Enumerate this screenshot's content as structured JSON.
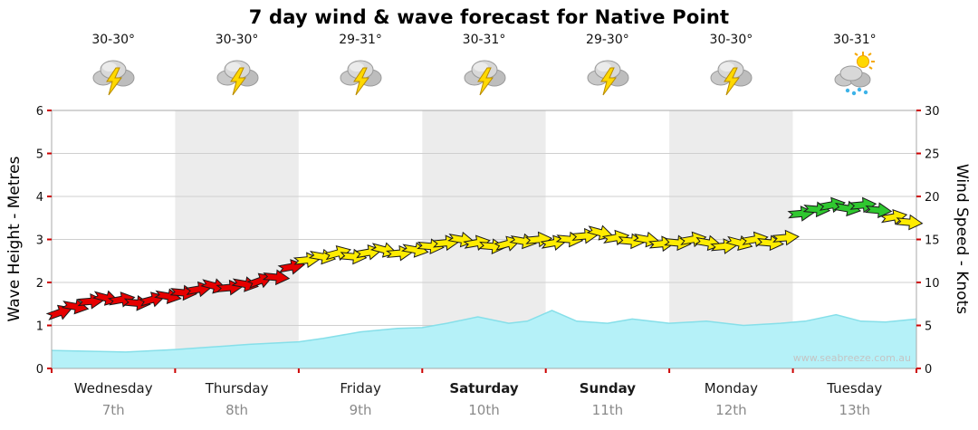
{
  "title": "7 day wind & wave forecast for Native Point",
  "watermark": "www.seabreeze.com.au",
  "days": [
    {
      "name": "Wednesday",
      "date": "7th",
      "temp": "30-30°",
      "icon": "storm",
      "weekend": false
    },
    {
      "name": "Thursday",
      "date": "8th",
      "temp": "30-30°",
      "icon": "storm",
      "weekend": false
    },
    {
      "name": "Friday",
      "date": "9th",
      "temp": "29-31°",
      "icon": "storm",
      "weekend": false
    },
    {
      "name": "Saturday",
      "date": "10th",
      "temp": "30-31°",
      "icon": "storm",
      "weekend": true
    },
    {
      "name": "Sunday",
      "date": "11th",
      "temp": "29-30°",
      "icon": "storm",
      "weekend": true
    },
    {
      "name": "Monday",
      "date": "12th",
      "temp": "30-30°",
      "icon": "storm",
      "weekend": false
    },
    {
      "name": "Tuesday",
      "date": "13th",
      "temp": "30-31°",
      "icon": "sun-shower",
      "weekend": false
    }
  ],
  "chart_data": {
    "type": "area",
    "title": "7 day wind & wave forecast for Native Point",
    "ylabel_left": "Wave Height - Metres",
    "ylabel_right": "Wind Speed - Knots",
    "ylim_left": [
      0,
      6
    ],
    "ylim_right": [
      0,
      30
    ],
    "yticks_left": [
      0,
      1,
      2,
      3,
      4,
      5,
      6
    ],
    "yticks_right": [
      0,
      5,
      10,
      15,
      20,
      25,
      30
    ],
    "xlim_days": [
      0,
      7
    ],
    "grid": true,
    "wave_series": {
      "name": "Wave Height (m)",
      "x": [
        0,
        0.3,
        0.6,
        1.0,
        1.3,
        1.6,
        2.0,
        2.2,
        2.5,
        2.8,
        3.0,
        3.2,
        3.45,
        3.7,
        3.85,
        4.05,
        4.25,
        4.5,
        4.7,
        5.0,
        5.3,
        5.6,
        5.9,
        6.1,
        6.35,
        6.55,
        6.75,
        7.0
      ],
      "values": [
        0.42,
        0.4,
        0.38,
        0.44,
        0.5,
        0.56,
        0.62,
        0.7,
        0.85,
        0.93,
        0.95,
        1.05,
        1.2,
        1.05,
        1.1,
        1.35,
        1.1,
        1.05,
        1.15,
        1.05,
        1.1,
        1.0,
        1.05,
        1.1,
        1.25,
        1.1,
        1.08,
        1.15
      ]
    },
    "wind_series": {
      "name": "Wind Speed (knots)",
      "x": [
        0.0625,
        0.1875,
        0.3125,
        0.4375,
        0.5625,
        0.6875,
        0.8125,
        0.9375,
        1.0625,
        1.1875,
        1.3125,
        1.4375,
        1.5625,
        1.6875,
        1.8125,
        1.9375,
        2.0625,
        2.1875,
        2.3125,
        2.4375,
        2.5625,
        2.6875,
        2.8125,
        2.9375,
        3.0625,
        3.1875,
        3.3125,
        3.4375,
        3.5625,
        3.6875,
        3.8125,
        3.9375,
        4.0625,
        4.1875,
        4.3125,
        4.4375,
        4.5625,
        4.6875,
        4.8125,
        4.9375,
        5.0625,
        5.1875,
        5.3125,
        5.4375,
        5.5625,
        5.6875,
        5.8125,
        5.9375,
        6.0625,
        6.1875,
        6.3125,
        6.4375,
        6.5625,
        6.6875,
        6.8125,
        6.9375
      ],
      "knots": [
        6.5,
        7.2,
        7.8,
        8.2,
        8.0,
        7.6,
        8.0,
        8.4,
        8.8,
        9.2,
        9.6,
        9.4,
        9.8,
        10.2,
        10.6,
        11.8,
        12.6,
        13.0,
        13.4,
        13.0,
        13.5,
        13.8,
        13.4,
        13.8,
        14.2,
        14.6,
        15.0,
        14.6,
        14.2,
        14.5,
        14.8,
        15.0,
        14.6,
        15.0,
        15.4,
        15.8,
        15.2,
        14.8,
        15.0,
        14.5,
        14.6,
        15.0,
        14.6,
        14.2,
        14.6,
        15.0,
        14.6,
        15.2,
        18.0,
        18.5,
        19.0,
        18.6,
        19.0,
        18.4,
        17.6,
        17.0
      ],
      "direction_deg": [
        -20,
        10,
        -5,
        15,
        -10,
        5,
        -15,
        10,
        5,
        -10,
        15,
        -5,
        10,
        -20,
        5,
        -10,
        -5,
        10,
        -15,
        5,
        -10,
        15,
        -5,
        10,
        5,
        -5,
        10,
        -10,
        5,
        -15,
        10,
        -5,
        -10,
        5,
        -5,
        15,
        -10,
        5,
        10,
        -5,
        5,
        -10,
        10,
        -5,
        15,
        -10,
        5,
        -5,
        -5,
        5,
        -10,
        10,
        -5,
        5,
        -10,
        5
      ],
      "color": [
        "red",
        "red",
        "red",
        "red",
        "red",
        "red",
        "red",
        "red",
        "red",
        "red",
        "red",
        "red",
        "red",
        "red",
        "red",
        "red",
        "yellow",
        "yellow",
        "yellow",
        "yellow",
        "yellow",
        "yellow",
        "yellow",
        "yellow",
        "yellow",
        "yellow",
        "yellow",
        "yellow",
        "yellow",
        "yellow",
        "yellow",
        "yellow",
        "yellow",
        "yellow",
        "yellow",
        "yellow",
        "yellow",
        "yellow",
        "yellow",
        "yellow",
        "yellow",
        "yellow",
        "yellow",
        "yellow",
        "yellow",
        "yellow",
        "yellow",
        "yellow",
        "green",
        "green",
        "green",
        "green",
        "green",
        "green",
        "yellow",
        "yellow"
      ]
    },
    "colors": {
      "wave_fill": "#b5f1f8",
      "wave_edge": "#86dfe9",
      "red": "#e60000",
      "yellow": "#ffec00",
      "green": "#2fc82f",
      "band_alt": "#ececec",
      "grid": "#cfcfcf",
      "tick": "#cc0000"
    }
  }
}
